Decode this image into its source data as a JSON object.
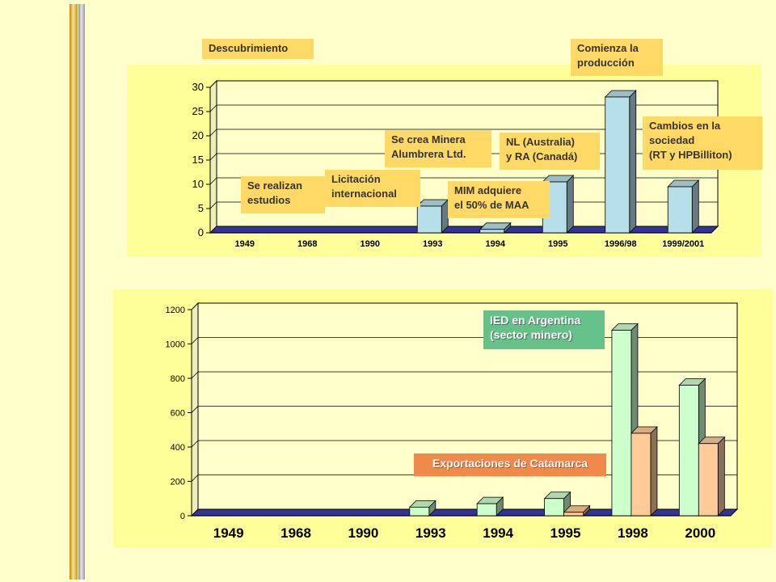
{
  "colors": {
    "background": "#FFFFCC",
    "panel": "#FFFF99",
    "plot_bg": "#FFFFCC",
    "bar_blue": "#B7DFEA",
    "bar_green": "#CCFFCC",
    "bar_orange": "#FFCC99",
    "floor": "#333399",
    "note_orange": "#FFD966",
    "note_green": "#66C08A",
    "note_salmon": "#F08A4B"
  },
  "annotations_top": {
    "descubrimiento": "Descubrimiento",
    "comienza": "Comienza la\nproducción",
    "estudios": "Se realizan\nestudios",
    "licitacion": "Licitación\ninternacional",
    "minera": "Se crea Minera\nAlumbrera Ltd.",
    "mim": "MIM adquiere\nel 50% de MAA",
    "nl": "NL (Australia)\ny RA (Canadá)",
    "cambios": "Cambios en la\nsociedad\n(RT y HPBilliton)"
  },
  "annotations_bottom": {
    "ied": "IED en Argentina\n(sector minero)",
    "exportaciones": "Exportaciones de Catamarca"
  },
  "chart_data": [
    {
      "type": "bar",
      "categories": [
        "1949",
        "1968",
        "1990",
        "1993",
        "1994",
        "1995",
        "1996/98",
        "1999/2001"
      ],
      "series": [
        {
          "values": [
            0,
            0,
            0,
            5.5,
            0.7,
            10.5,
            28,
            9.5
          ]
        }
      ],
      "ylim": [
        0,
        30
      ],
      "yticks": [
        "0",
        "5",
        "10",
        "15",
        "20",
        "25",
        "30"
      ],
      "grid": true
    },
    {
      "type": "bar",
      "categories": [
        "1949",
        "1968",
        "1990",
        "1993",
        "1994",
        "1995",
        "1998",
        "2000"
      ],
      "series": [
        {
          "name": "IED en Argentina (sector minero)",
          "values": [
            0,
            0,
            0,
            50,
            70,
            100,
            1080,
            760
          ]
        },
        {
          "name": "Exportaciones de Catamarca",
          "values": [
            0,
            0,
            0,
            0,
            0,
            20,
            480,
            420
          ]
        }
      ],
      "ylim": [
        0,
        1200
      ],
      "yticks": [
        "0",
        "200",
        "400",
        "600",
        "800",
        "1000",
        "1200"
      ],
      "grid": true
    }
  ]
}
